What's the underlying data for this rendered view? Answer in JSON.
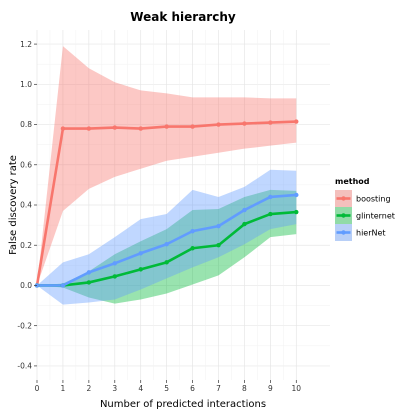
{
  "chart_data": {
    "type": "line",
    "title": "Weak hierarchy",
    "xlabel": "Number of predicted interactions",
    "ylabel": "False discovery rate",
    "xlim": [
      0,
      11.3
    ],
    "ylim": [
      -0.47,
      1.27
    ],
    "x_ticks": [
      0,
      1,
      2,
      3,
      4,
      5,
      6,
      7,
      8,
      9,
      10
    ],
    "y_ticks": [
      -0.4,
      -0.2,
      0.0,
      0.2,
      0.4,
      0.6,
      0.8,
      1.0,
      1.2
    ],
    "y_tick_labels": [
      "-0.4",
      "-0.2",
      "0.0",
      "0.2",
      "0.4",
      "0.6",
      "0.8",
      "1.0",
      "1.2"
    ],
    "x": [
      0,
      1,
      2,
      3,
      4,
      5,
      6,
      7,
      8,
      9,
      10
    ],
    "grid": true,
    "legend_position": "right",
    "legend_title": "method",
    "series": [
      {
        "name": "boosting",
        "line_color": "#F8766D",
        "band_color": "#F8766D",
        "values": [
          0.0,
          0.78,
          0.78,
          0.785,
          0.78,
          0.79,
          0.79,
          0.8,
          0.805,
          0.81,
          0.815
        ],
        "lower": [
          0.0,
          0.37,
          0.48,
          0.54,
          0.58,
          0.62,
          0.64,
          0.66,
          0.68,
          0.695,
          0.71
        ],
        "upper": [
          0.0,
          1.19,
          1.08,
          1.01,
          0.97,
          0.955,
          0.935,
          0.935,
          0.935,
          0.93,
          0.93
        ]
      },
      {
        "name": "glinternet",
        "line_color": "#00BA38",
        "band_color": "#00BA38",
        "values": [
          0.0,
          0.0,
          0.015,
          0.045,
          0.08,
          0.115,
          0.185,
          0.2,
          0.305,
          0.355,
          0.365
        ],
        "lower": [
          0.0,
          -0.01,
          -0.06,
          -0.09,
          -0.07,
          -0.04,
          0.005,
          0.05,
          0.14,
          0.24,
          0.255
        ],
        "upper": [
          0.0,
          0.01,
          0.07,
          0.155,
          0.22,
          0.28,
          0.375,
          0.38,
          0.44,
          0.475,
          0.47
        ]
      },
      {
        "name": "hierNet",
        "line_color": "#619CFF",
        "band_color": "#619CFF",
        "values": [
          0.0,
          0.0,
          0.065,
          0.11,
          0.16,
          0.205,
          0.27,
          0.295,
          0.375,
          0.44,
          0.45
        ],
        "lower": [
          0.0,
          -0.095,
          -0.085,
          -0.07,
          -0.02,
          0.035,
          0.09,
          0.14,
          0.205,
          0.28,
          0.305
        ],
        "upper": [
          0.0,
          0.115,
          0.155,
          0.24,
          0.33,
          0.355,
          0.475,
          0.44,
          0.49,
          0.575,
          0.57
        ]
      }
    ]
  }
}
